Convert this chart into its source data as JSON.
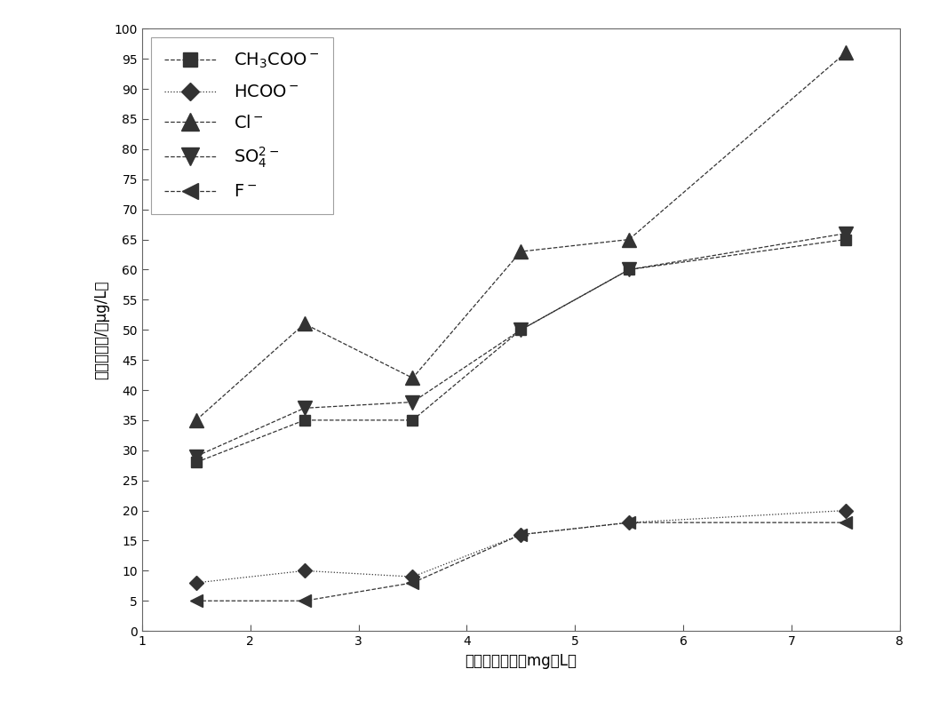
{
  "series": [
    {
      "name": "CH$_3$COO$^-$",
      "x": [
        1.5,
        2.5,
        3.5,
        4.5,
        5.5,
        7.5
      ],
      "y": [
        28,
        35,
        35,
        50,
        60,
        65
      ],
      "marker": "s",
      "linestyle": "--",
      "markersize": 9
    },
    {
      "name": "HCOO$^-$",
      "x": [
        1.5,
        2.5,
        3.5,
        4.5,
        5.5,
        7.5
      ],
      "y": [
        8,
        10,
        9,
        16,
        18,
        20
      ],
      "marker": "D",
      "linestyle": ":",
      "markersize": 8
    },
    {
      "name": "Cl$^-$",
      "x": [
        1.5,
        2.5,
        3.5,
        4.5,
        5.5,
        7.5
      ],
      "y": [
        35,
        51,
        42,
        63,
        65,
        96
      ],
      "marker": "^",
      "linestyle": "--",
      "markersize": 11
    },
    {
      "name": "SO$_4^{2-}$",
      "x": [
        1.5,
        2.5,
        3.5,
        4.5,
        5.5,
        7.5
      ],
      "y": [
        29,
        37,
        38,
        50,
        60,
        66
      ],
      "marker": "v",
      "linestyle": "--",
      "markersize": 11
    },
    {
      "name": "F$^-$",
      "x": [
        1.5,
        2.5,
        3.5,
        4.5,
        5.5,
        7.5
      ],
      "y": [
        5,
        5,
        8,
        16,
        18,
        18
      ],
      "marker": "<",
      "linestyle": "--",
      "markersize": 10
    }
  ],
  "color": "#333333",
  "xlabel_text": "居标酸浓度／（mg／L）",
  "ylabel_text": "各离子浓度/（μg/L）",
  "xlim": [
    1,
    8
  ],
  "ylim": [
    0,
    100
  ],
  "yticks": [
    0,
    5,
    10,
    15,
    20,
    25,
    30,
    35,
    40,
    45,
    50,
    55,
    60,
    65,
    70,
    75,
    80,
    85,
    90,
    95,
    100
  ],
  "xticks": [
    1,
    2,
    3,
    4,
    5,
    6,
    7,
    8
  ],
  "figsize": [
    10.66,
    8.07
  ],
  "dpi": 100
}
